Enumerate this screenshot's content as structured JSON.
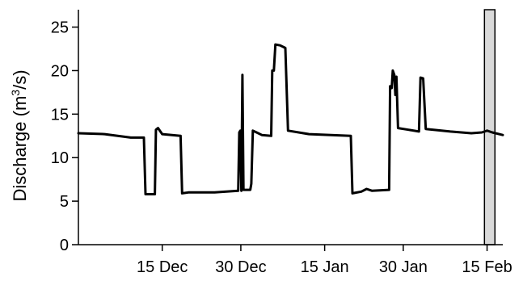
{
  "chart_data": {
    "type": "line",
    "title": "",
    "xlabel": "",
    "ylabel": {
      "prefix": "Discharge (m",
      "superscript": "3",
      "suffix": "/s)"
    },
    "y_ticks": [
      0,
      5,
      10,
      15,
      20,
      25
    ],
    "ylim": [
      0,
      27
    ],
    "x_ticks": [
      {
        "day": 15,
        "label": "15 Dec"
      },
      {
        "day": 30,
        "label": "30 Dec"
      },
      {
        "day": 46,
        "label": "15 Jan"
      },
      {
        "day": 61,
        "label": "30 Jan"
      },
      {
        "day": 77,
        "label": "15 Feb"
      }
    ],
    "xlim": [
      -1,
      80
    ],
    "colors": {
      "line": "#000000",
      "shade": "#d9d9d9"
    },
    "shaded_region": {
      "x_start": 76.5,
      "x_end": 78.5
    },
    "series": [
      {
        "points": [
          [
            -1,
            12.8
          ],
          [
            4,
            12.7
          ],
          [
            9,
            12.3
          ],
          [
            11.5,
            12.3
          ],
          [
            11.8,
            5.8
          ],
          [
            13.6,
            5.8
          ],
          [
            13.8,
            13.2
          ],
          [
            14.2,
            13.4
          ],
          [
            15,
            12.7
          ],
          [
            18.5,
            12.5
          ],
          [
            18.8,
            5.9
          ],
          [
            20,
            6.0
          ],
          [
            25,
            6.0
          ],
          [
            29.5,
            6.2
          ],
          [
            29.7,
            12.9
          ],
          [
            29.9,
            13.1
          ],
          [
            30.1,
            6.2
          ],
          [
            30.3,
            19.5
          ],
          [
            30.5,
            6.3
          ],
          [
            31.8,
            6.3
          ],
          [
            32,
            7.0
          ],
          [
            32.3,
            13.1
          ],
          [
            33,
            12.9
          ],
          [
            34,
            12.6
          ],
          [
            35.8,
            12.5
          ],
          [
            36,
            20.0
          ],
          [
            36.3,
            20.0
          ],
          [
            36.6,
            23.0
          ],
          [
            37.5,
            22.9
          ],
          [
            38.5,
            22.6
          ],
          [
            39,
            13.1
          ],
          [
            43,
            12.7
          ],
          [
            51,
            12.5
          ],
          [
            51.3,
            5.9
          ],
          [
            53,
            6.1
          ],
          [
            54,
            6.4
          ],
          [
            55,
            6.2
          ],
          [
            58.3,
            6.3
          ],
          [
            58.5,
            18.2
          ],
          [
            58.8,
            18.0
          ],
          [
            59,
            20.0
          ],
          [
            59.3,
            19.5
          ],
          [
            59.5,
            17.2
          ],
          [
            59.7,
            19.3
          ],
          [
            60,
            13.4
          ],
          [
            62,
            13.2
          ],
          [
            64,
            13.0
          ],
          [
            64.3,
            19.2
          ],
          [
            64.8,
            19.1
          ],
          [
            65.3,
            13.3
          ],
          [
            70,
            13.0
          ],
          [
            74,
            12.8
          ],
          [
            76,
            12.9
          ],
          [
            77,
            13.1
          ],
          [
            78,
            12.9
          ],
          [
            80,
            12.6
          ]
        ]
      }
    ]
  }
}
